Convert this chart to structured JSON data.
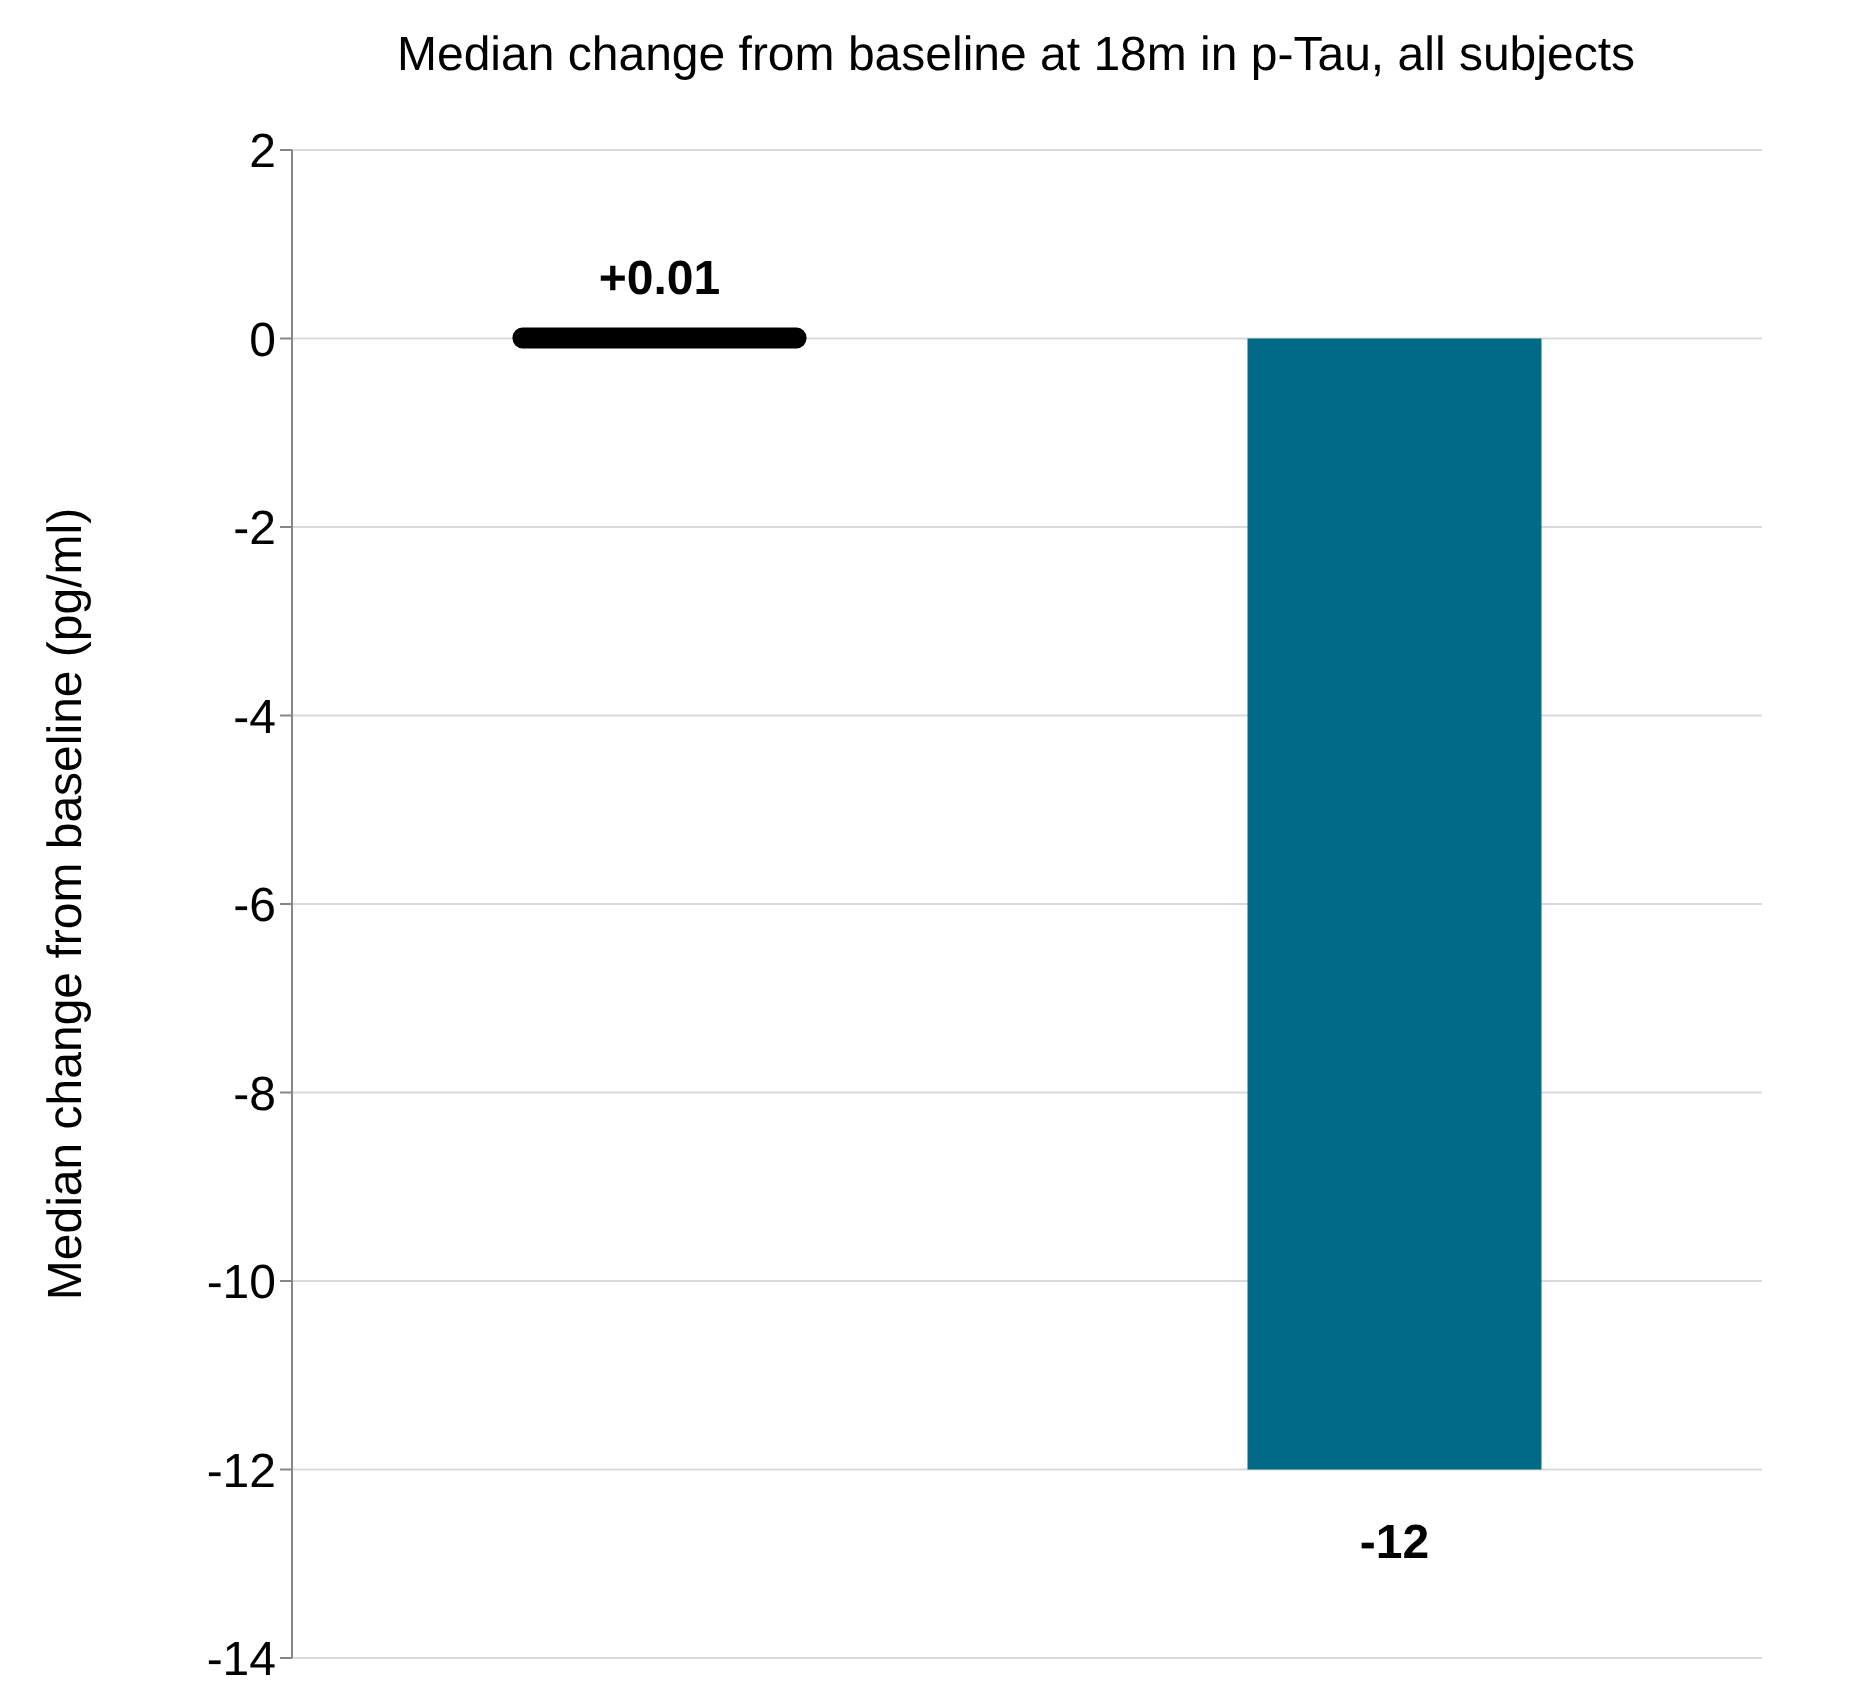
{
  "chart_data": {
    "type": "bar",
    "title": "Median change from baseline at 18m in p-Tau, all subjects",
    "ylabel": "Median change from baseline (pg/ml)",
    "categories": [
      null,
      null
    ],
    "values": [
      0.01,
      -12
    ],
    "colors": [
      "#000000",
      "#006a87"
    ],
    "value_labels": [
      "+0.01",
      "-12"
    ],
    "ylim": [
      -14,
      2
    ],
    "yticks": [
      2,
      0,
      -2,
      -4,
      -6,
      -8,
      -10,
      -12,
      -14
    ],
    "grid": "y"
  }
}
